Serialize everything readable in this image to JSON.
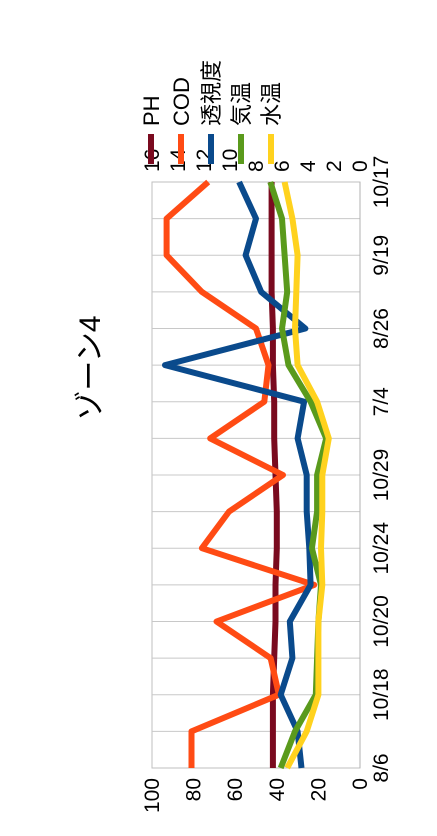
{
  "chart_data": {
    "type": "line",
    "title": "ゾーン4",
    "categories": [
      "8/6",
      "",
      "10/18",
      "",
      "10/20",
      "",
      "10/24",
      "",
      "10/29",
      "",
      "7/4",
      "",
      "8/26",
      "",
      "9/19",
      "",
      "10/17"
    ],
    "left_axis": {
      "ylim": [
        0,
        100
      ],
      "ticks": [
        "0",
        "20",
        "40",
        "60",
        "80",
        "100"
      ]
    },
    "right_axis": {
      "ylim": [
        0,
        16
      ],
      "ticks": [
        "0",
        "2",
        "4",
        "6",
        "8",
        "10",
        "12",
        "14",
        "16"
      ]
    },
    "grid": true,
    "legend_position": "right",
    "series": [
      {
        "name": "PH",
        "axis": "right",
        "color": "#7a0a1f",
        "values": [
          6.7,
          6.7,
          6.7,
          6.6,
          6.5,
          6.5,
          6.4,
          6.4,
          6.5,
          6.6,
          6.6,
          6.7,
          6.7,
          6.8,
          6.8,
          6.8,
          6.8
        ]
      },
      {
        "name": "COD",
        "axis": "left",
        "color": "#ff4b14",
        "values": [
          81,
          81,
          39,
          43,
          69,
          22,
          76,
          63,
          37,
          72,
          46,
          44,
          50,
          76,
          93,
          93,
          73
        ]
      },
      {
        "name": "透視度",
        "axis": "right",
        "color": "#0a4a8c",
        "values": [
          4.5,
          4.8,
          6.1,
          5.2,
          5.4,
          3.8,
          3.9,
          4.1,
          4.1,
          4.8,
          4.3,
          15.0,
          4.2,
          7.6,
          8.8,
          8.0,
          9.3
        ]
      },
      {
        "name": "気温",
        "axis": "right",
        "color": "#5a9a1c",
        "values": [
          6.1,
          5.0,
          3.4,
          3.3,
          3.2,
          3.0,
          3.7,
          3.3,
          3.3,
          2.6,
          3.8,
          5.5,
          6.0,
          5.6,
          5.8,
          6.0,
          6.9
        ]
      },
      {
        "name": "水温",
        "axis": "right",
        "color": "#ffd21e",
        "values": [
          5.6,
          4.1,
          3.2,
          3.2,
          3.2,
          2.9,
          3.0,
          2.9,
          2.9,
          2.4,
          3.3,
          4.8,
          5.0,
          4.9,
          4.8,
          5.2,
          5.8
        ]
      }
    ]
  }
}
